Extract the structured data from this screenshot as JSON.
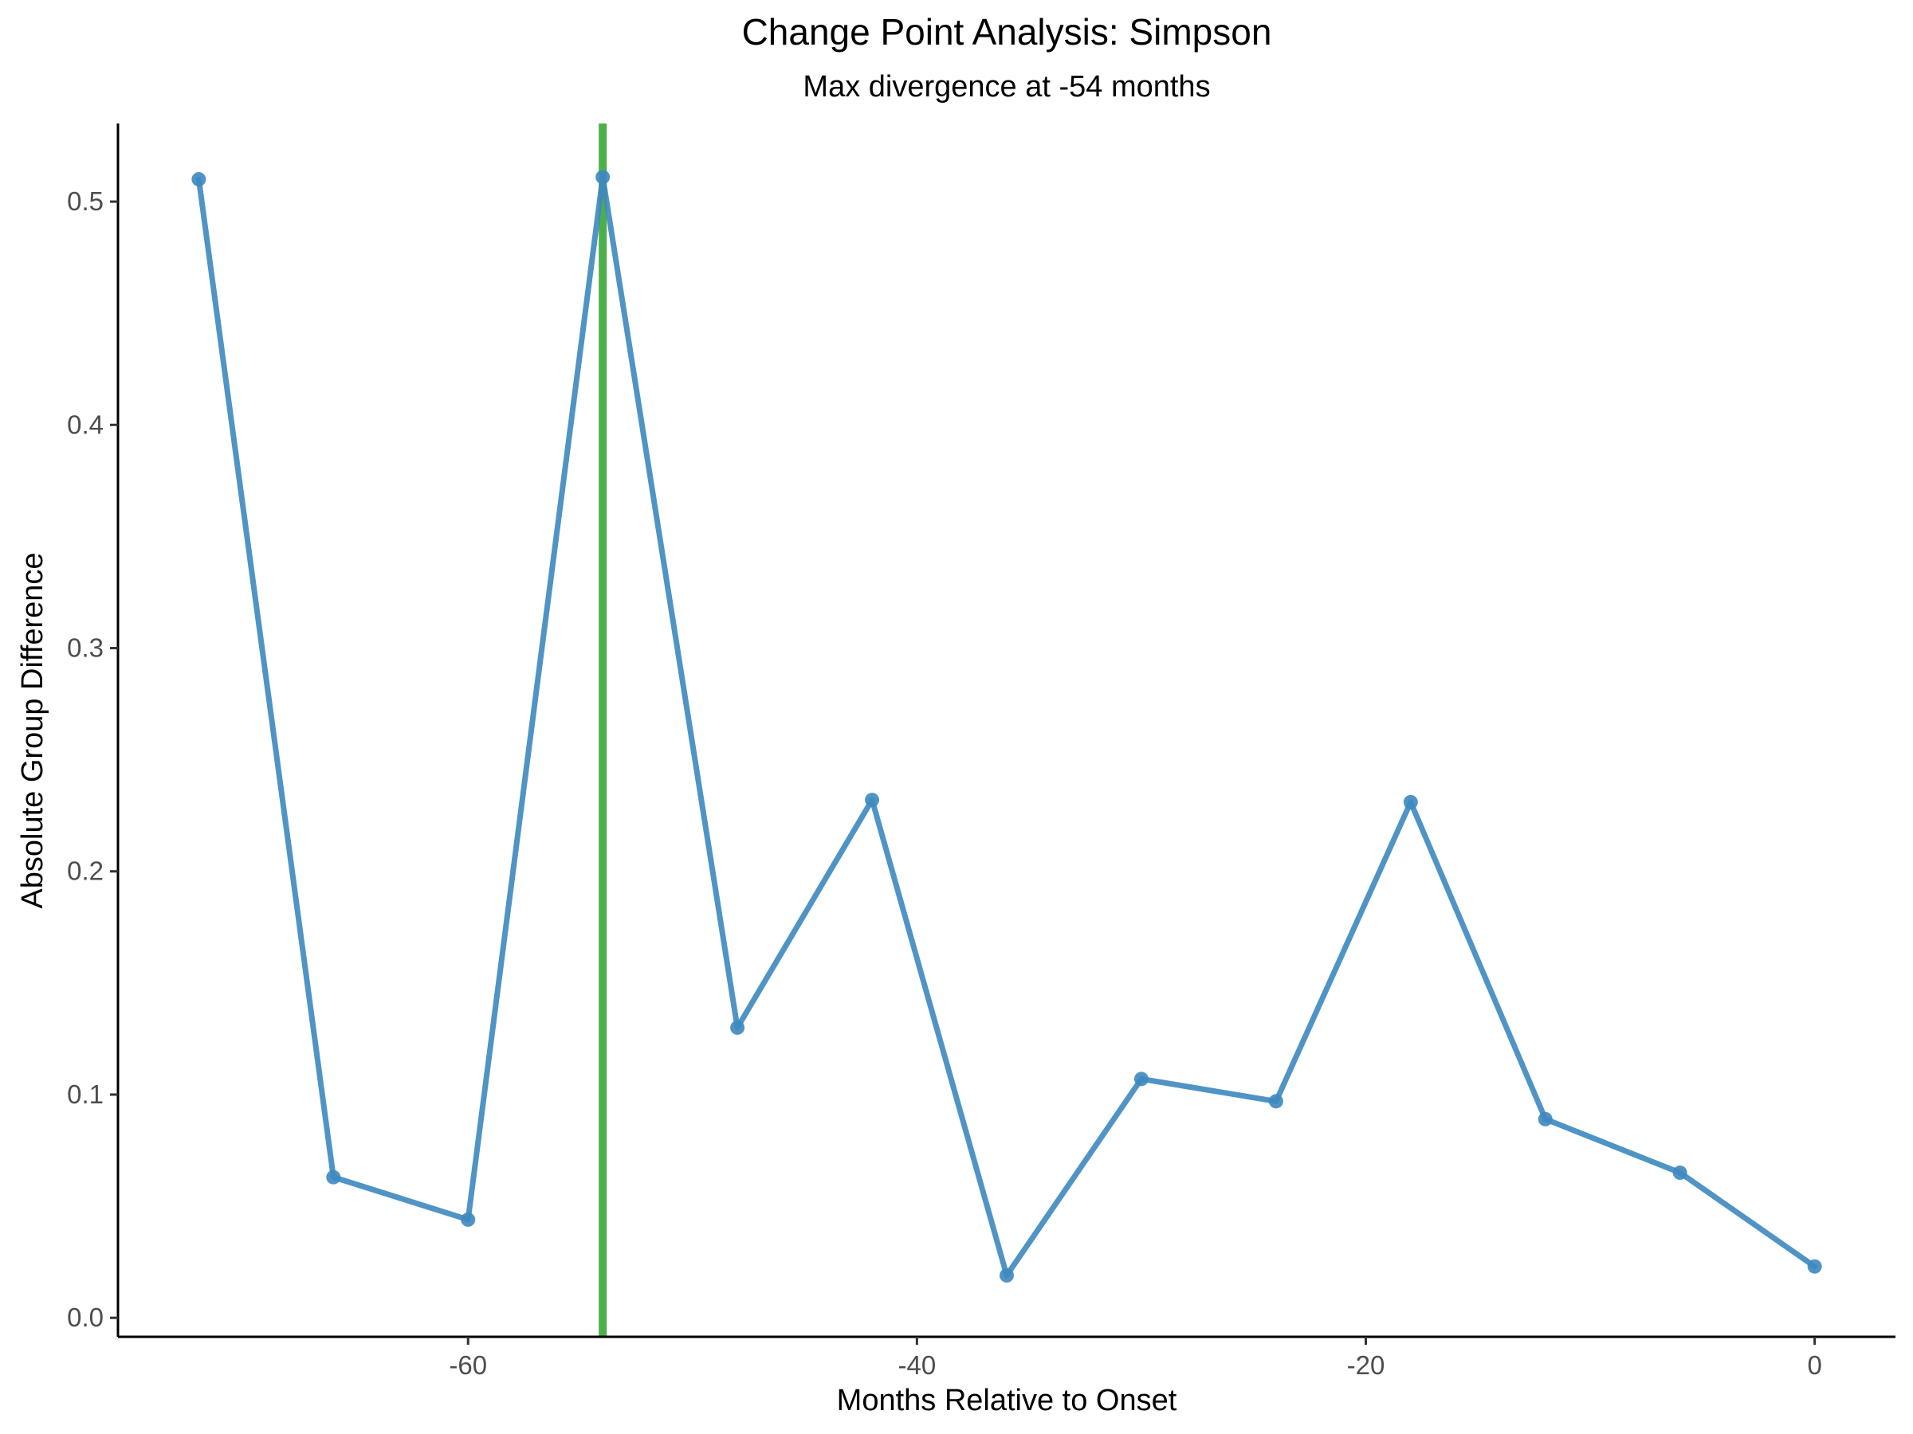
{
  "chart_data": {
    "type": "line",
    "title": "Change Point Analysis: Simpson",
    "subtitle": "Max divergence at -54 months",
    "xlabel": "Months Relative to Onset",
    "ylabel": "Absolute Group Difference",
    "xlim": [
      -75.6,
      3.6
    ],
    "ylim": [
      -0.0085,
      0.535
    ],
    "xticks": [
      -60,
      -40,
      -20,
      0
    ],
    "xtick_labels": [
      "-60",
      "-40",
      "-20",
      "0"
    ],
    "yticks": [
      0.0,
      0.1,
      0.2,
      0.3,
      0.4,
      0.5
    ],
    "ytick_labels": [
      "0.0",
      "0.1",
      "0.2",
      "0.3",
      "0.4",
      "0.5"
    ],
    "grid": false,
    "series": [
      {
        "color": "#3d88c0",
        "points": [
          {
            "x": -72,
            "y": 0.51
          },
          {
            "x": -66,
            "y": 0.063
          },
          {
            "x": -60,
            "y": 0.044
          },
          {
            "x": -54,
            "y": 0.511
          },
          {
            "x": -48,
            "y": 0.13
          },
          {
            "x": -42,
            "y": 0.232
          },
          {
            "x": -36,
            "y": 0.019
          },
          {
            "x": -30,
            "y": 0.107
          },
          {
            "x": -24,
            "y": 0.097
          },
          {
            "x": -18,
            "y": 0.231
          },
          {
            "x": -12,
            "y": 0.089
          },
          {
            "x": -6,
            "y": 0.065
          },
          {
            "x": 0,
            "y": 0.023
          }
        ]
      }
    ],
    "vline": {
      "x": -54,
      "color": "#4daf4a"
    }
  }
}
